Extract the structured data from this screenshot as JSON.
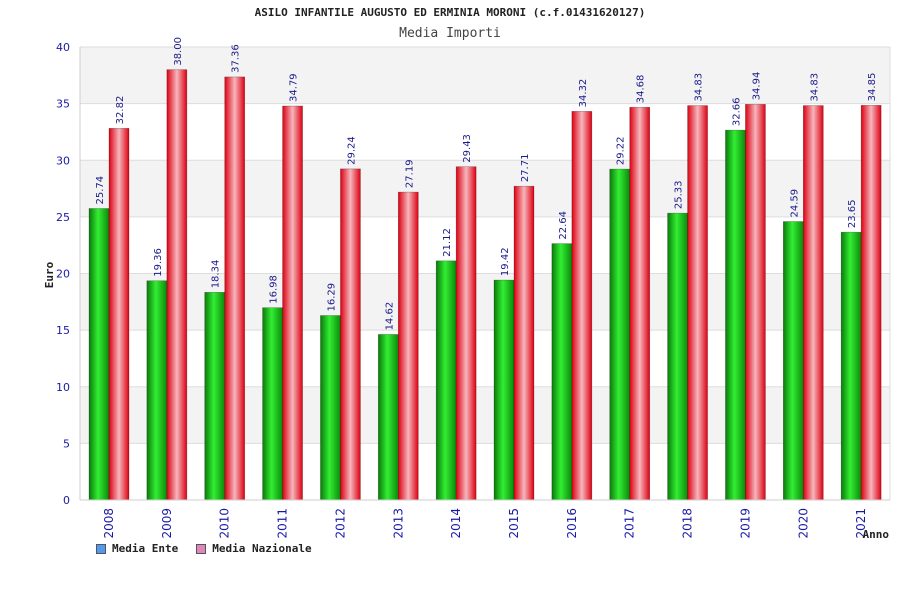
{
  "chart_data": {
    "type": "bar",
    "title": "ASILO INFANTILE AUGUSTO ED ERMINIA MORONI (c.f.01431620127)",
    "subtitle": "Media Importi",
    "xlabel": "Anno",
    "ylabel": "Euro",
    "ylim": [
      0,
      40
    ],
    "yticks": [
      "0",
      "5",
      "10",
      "15",
      "20",
      "25",
      "30",
      "35",
      "40"
    ],
    "categories": [
      "2008",
      "2009",
      "2010",
      "2011",
      "2012",
      "2013",
      "2014",
      "2015",
      "2016",
      "2017",
      "2018",
      "2019",
      "2020",
      "2021"
    ],
    "series": [
      {
        "name": "Media Ente",
        "color": "#22cc22",
        "legend_color": "#5599ee",
        "values": [
          25.74,
          19.36,
          18.34,
          16.98,
          16.29,
          14.62,
          21.12,
          19.42,
          22.64,
          29.22,
          25.33,
          32.66,
          24.59,
          23.65
        ],
        "labels": [
          "25.74",
          "19.36",
          "18.34",
          "16.98",
          "16.29",
          "14.62",
          "21.12",
          "19.42",
          "22.64",
          "29.22",
          "25.33",
          "32.66",
          "24.59",
          "23.65"
        ]
      },
      {
        "name": "Media Nazionale",
        "color": "#ee1111",
        "legend_color": "#dd88bb",
        "values": [
          32.82,
          38.0,
          37.36,
          34.79,
          29.24,
          27.19,
          29.43,
          27.71,
          34.32,
          34.68,
          34.83,
          34.94,
          34.83,
          34.85
        ],
        "labels": [
          "32.82",
          "38.00",
          "37.36",
          "34.79",
          "29.24",
          "27.19",
          "29.43",
          "27.71",
          "34.32",
          "34.68",
          "34.83",
          "34.94",
          "34.83",
          "34.85"
        ]
      }
    ],
    "grid": true,
    "legend_position": "bottom-left"
  }
}
